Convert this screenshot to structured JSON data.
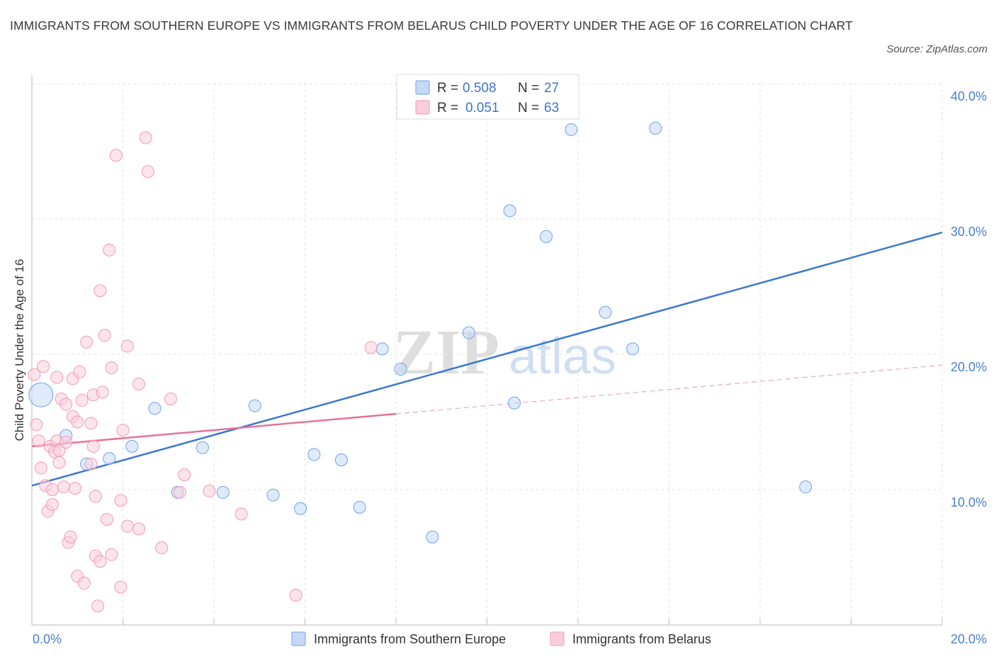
{
  "title": "IMMIGRANTS FROM SOUTHERN EUROPE VS IMMIGRANTS FROM BELARUS CHILD POVERTY UNDER THE AGE OF 16 CORRELATION CHART",
  "source": "Source: ZipAtlas.com",
  "watermark": {
    "zip": "ZIP",
    "atlas": "atlas"
  },
  "legend": {
    "r_label": "R =",
    "n_label": "N =",
    "rows": [
      {
        "r": "0.508",
        "n": "27",
        "color": "#6fa1e8"
      },
      {
        "r": "0.051",
        "n": "63",
        "color": "#f29ab5"
      }
    ]
  },
  "chart_data": {
    "type": "scatter",
    "title": "IMMIGRANTS FROM SOUTHERN EUROPE VS IMMIGRANTS FROM BELARUS CHILD POVERTY UNDER THE AGE OF 16 CORRELATION CHART",
    "xlabel": "",
    "ylabel": "Child Poverty Under the Age of 16",
    "xlim": [
      0,
      20
    ],
    "ylim": [
      0,
      40
    ],
    "x_tick_labels": [
      "0.0%",
      "20.0%"
    ],
    "y_ticks": [
      10,
      20,
      30,
      40
    ],
    "y_tick_labels": [
      "10.0%",
      "20.0%",
      "30.0%",
      "40.0%"
    ],
    "grid": true,
    "series": [
      {
        "name": "Immigrants from Southern Europe",
        "color": "#6fa1e8",
        "trend": {
          "x": [
            0.0,
            20.0
          ],
          "y": [
            10.3,
            29.0
          ],
          "dashed_from": null
        },
        "points": [
          [
            0.2,
            17.0
          ],
          [
            0.75,
            14.0
          ],
          [
            1.2,
            11.9
          ],
          [
            1.7,
            12.3
          ],
          [
            2.2,
            13.2
          ],
          [
            2.7,
            16.0
          ],
          [
            3.2,
            9.8
          ],
          [
            3.75,
            13.1
          ],
          [
            4.2,
            9.8
          ],
          [
            4.9,
            16.2
          ],
          [
            5.3,
            9.6
          ],
          [
            5.9,
            8.6
          ],
          [
            6.2,
            12.6
          ],
          [
            6.8,
            12.2
          ],
          [
            7.2,
            8.7
          ],
          [
            7.7,
            20.4
          ],
          [
            8.1,
            18.9
          ],
          [
            8.8,
            6.5
          ],
          [
            9.6,
            21.6
          ],
          [
            10.5,
            30.6
          ],
          [
            10.6,
            16.4
          ],
          [
            11.3,
            28.7
          ],
          [
            11.85,
            36.6
          ],
          [
            12.6,
            23.1
          ],
          [
            13.2,
            20.4
          ],
          [
            13.7,
            36.7
          ],
          [
            17.0,
            10.2
          ]
        ]
      },
      {
        "name": "Immigrants from Belarus",
        "color": "#f29ab5",
        "trend": {
          "x": [
            0.0,
            20.0
          ],
          "y": [
            13.2,
            19.2
          ],
          "solid_until_x": 8.0
        },
        "points": [
          [
            0.05,
            18.5
          ],
          [
            0.1,
            14.8
          ],
          [
            0.15,
            13.6
          ],
          [
            0.2,
            11.6
          ],
          [
            0.25,
            19.1
          ],
          [
            0.3,
            10.3
          ],
          [
            0.35,
            8.4
          ],
          [
            0.4,
            13.2
          ],
          [
            0.45,
            8.9
          ],
          [
            0.45,
            10.0
          ],
          [
            0.5,
            12.8
          ],
          [
            0.55,
            13.6
          ],
          [
            0.55,
            18.3
          ],
          [
            0.6,
            12.0
          ],
          [
            0.6,
            12.9
          ],
          [
            0.65,
            16.7
          ],
          [
            0.7,
            10.2
          ],
          [
            0.75,
            16.3
          ],
          [
            0.75,
            13.5
          ],
          [
            0.8,
            6.1
          ],
          [
            0.85,
            6.5
          ],
          [
            0.9,
            15.4
          ],
          [
            0.9,
            18.2
          ],
          [
            0.95,
            10.1
          ],
          [
            1.0,
            3.6
          ],
          [
            1.0,
            15.0
          ],
          [
            1.05,
            18.7
          ],
          [
            1.1,
            16.6
          ],
          [
            1.15,
            3.1
          ],
          [
            1.2,
            20.9
          ],
          [
            1.3,
            11.9
          ],
          [
            1.3,
            14.9
          ],
          [
            1.35,
            13.2
          ],
          [
            1.35,
            17.0
          ],
          [
            1.4,
            5.1
          ],
          [
            1.4,
            9.5
          ],
          [
            1.45,
            1.4
          ],
          [
            1.5,
            4.7
          ],
          [
            1.5,
            24.7
          ],
          [
            1.55,
            17.2
          ],
          [
            1.6,
            21.4
          ],
          [
            1.65,
            7.8
          ],
          [
            1.7,
            27.7
          ],
          [
            1.75,
            5.2
          ],
          [
            1.75,
            19.0
          ],
          [
            1.85,
            34.7
          ],
          [
            1.95,
            9.2
          ],
          [
            1.95,
            2.8
          ],
          [
            2.0,
            14.4
          ],
          [
            2.1,
            20.6
          ],
          [
            2.1,
            7.3
          ],
          [
            2.35,
            7.1
          ],
          [
            2.35,
            17.8
          ],
          [
            2.5,
            36.0
          ],
          [
            2.55,
            33.5
          ],
          [
            2.85,
            5.7
          ],
          [
            3.05,
            16.7
          ],
          [
            3.25,
            9.8
          ],
          [
            3.35,
            11.1
          ],
          [
            3.9,
            9.9
          ],
          [
            5.8,
            2.2
          ],
          [
            7.45,
            20.5
          ],
          [
            4.6,
            8.2
          ]
        ]
      }
    ]
  },
  "bottom_legend": [
    {
      "label": "Immigrants from Southern Europe",
      "color": "#6fa1e8"
    },
    {
      "label": "Immigrants from Belarus",
      "color": "#f29ab5"
    }
  ]
}
